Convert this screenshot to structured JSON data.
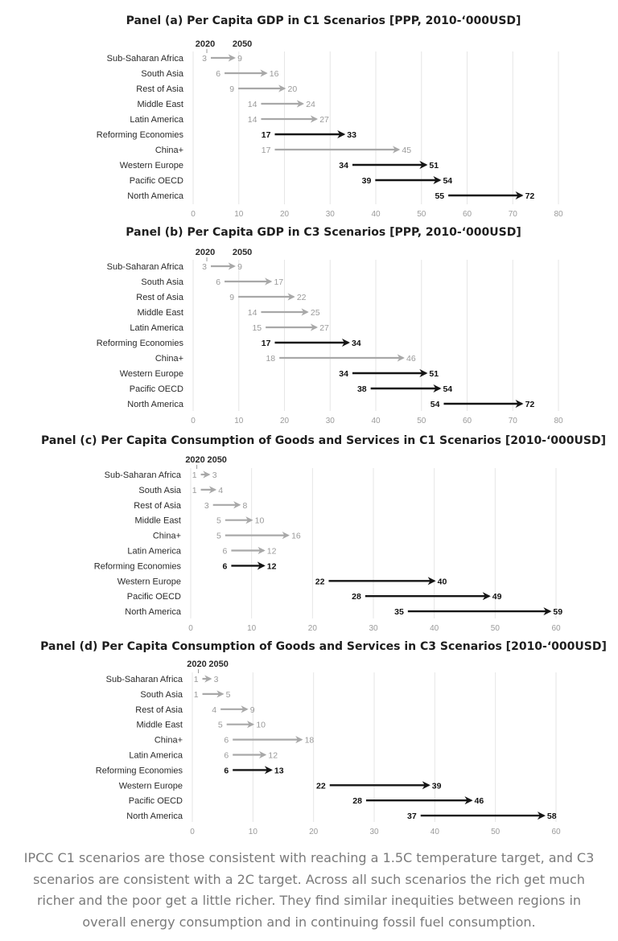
{
  "colors": {
    "dark_series": "#151515",
    "light_series": "#a8a8a8",
    "grid": "#e6e6e6",
    "caption_text": "#7a7a7a"
  },
  "year_labels": {
    "start": "2020",
    "end": "2050"
  },
  "chart_data": [
    {
      "type": "arrow-dumbbell",
      "title": "Panel (a) Per Capita GDP in C1 Scenarios [PPP, 2010-‘000USD]",
      "xlim": [
        0,
        80
      ],
      "xticks": [
        0,
        10,
        20,
        30,
        40,
        50,
        60,
        70,
        80
      ],
      "grid": true,
      "categories": [
        "Sub-Saharan Africa",
        "South Asia",
        "Rest of Asia",
        "Middle East",
        "Latin America",
        "Reforming Economies",
        "China+",
        "Western Europe",
        "Pacific OECD",
        "North America"
      ],
      "start_2020": [
        3,
        6,
        9,
        14,
        14,
        17,
        17,
        34,
        39,
        55
      ],
      "end_2050": [
        9,
        16,
        20,
        24,
        27,
        33,
        45,
        51,
        54,
        72
      ],
      "highlighted": [
        false,
        false,
        false,
        false,
        false,
        true,
        false,
        true,
        true,
        true
      ]
    },
    {
      "type": "arrow-dumbbell",
      "title": "Panel (b) Per Capita GDP in C3 Scenarios [PPP, 2010-‘000USD]",
      "xlim": [
        0,
        80
      ],
      "xticks": [
        0,
        10,
        20,
        30,
        40,
        50,
        60,
        70,
        80
      ],
      "grid": true,
      "categories": [
        "Sub-Saharan Africa",
        "South Asia",
        "Rest of Asia",
        "Middle East",
        "Latin America",
        "Reforming Economies",
        "China+",
        "Western Europe",
        "Pacific OECD",
        "North America"
      ],
      "start_2020": [
        3,
        6,
        9,
        14,
        15,
        17,
        18,
        34,
        38,
        54
      ],
      "end_2050": [
        9,
        17,
        22,
        25,
        27,
        34,
        46,
        51,
        54,
        72
      ],
      "highlighted": [
        false,
        false,
        false,
        false,
        false,
        true,
        false,
        true,
        true,
        true
      ]
    },
    {
      "type": "arrow-dumbbell",
      "title": "Panel (c) Per Capita Consumption of Goods and Services in C1 Scenarios [2010-‘000USD]",
      "xlim": [
        0,
        60
      ],
      "xticks": [
        0,
        10,
        20,
        30,
        40,
        50,
        60
      ],
      "grid": true,
      "categories": [
        "Sub-Saharan Africa",
        "South Asia",
        "Rest of Asia",
        "Middle East",
        "China+",
        "Latin America",
        "Reforming Economies",
        "Western Europe",
        "Pacific OECD",
        "North America"
      ],
      "start_2020": [
        1,
        1,
        3,
        5,
        5,
        6,
        6,
        22,
        28,
        35
      ],
      "end_2050": [
        3,
        4,
        8,
        10,
        16,
        12,
        12,
        40,
        49,
        59
      ],
      "highlighted": [
        false,
        false,
        false,
        false,
        false,
        false,
        true,
        true,
        true,
        true
      ]
    },
    {
      "type": "arrow-dumbbell",
      "title": "Panel (d) Per Capita Consumption of Goods and Services in C3 Scenarios [2010-‘000USD]",
      "xlim": [
        0,
        60
      ],
      "xticks": [
        0,
        10,
        20,
        30,
        40,
        50,
        60
      ],
      "grid": true,
      "categories": [
        "Sub-Saharan Africa",
        "South Asia",
        "Rest of Asia",
        "Middle East",
        "China+",
        "Latin America",
        "Reforming Economies",
        "Western Europe",
        "Pacific OECD",
        "North America"
      ],
      "start_2020": [
        1,
        1,
        4,
        5,
        6,
        6,
        6,
        22,
        28,
        37
      ],
      "end_2050": [
        3,
        5,
        9,
        10,
        18,
        12,
        13,
        39,
        46,
        58
      ],
      "highlighted": [
        false,
        false,
        false,
        false,
        false,
        false,
        true,
        true,
        true,
        true
      ]
    }
  ],
  "caption": "IPCC C1 scenarios are those consistent with reaching a 1.5C temperature target, and C3 scenarios are consistent with a 2C target. Across all such scenarios the rich get much richer and the poor get a little richer. They find similar inequities between regions in overall energy consumption and in continuing fossil fuel consumption."
}
